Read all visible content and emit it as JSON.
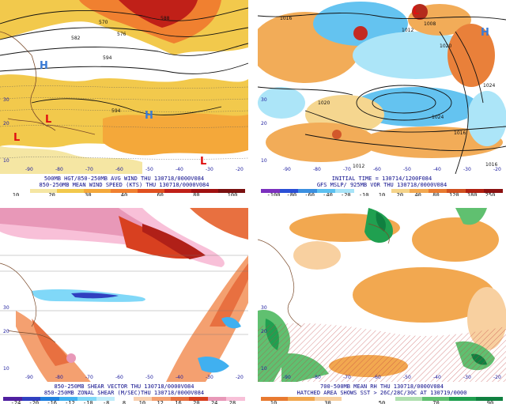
{
  "panels": [
    {
      "caption1": "500MB HGT/850-250MB AVG WIND THU 130718/0000V084",
      "caption2": "850-250MB MEAN WIND SPEED (KTS) THU 130718/0000V084",
      "ticks": [
        "10",
        "20",
        "30",
        "40",
        "60",
        "80",
        "100"
      ],
      "colors": [
        "#ffffff",
        "#f5e6a3",
        "#f2c94c",
        "#f4a83a",
        "#f08030",
        "#e05020",
        "#c02018",
        "#a01010",
        "#7a1010"
      ],
      "pressure_labels": [
        {
          "text": "H"
        },
        {
          "text": "H"
        },
        {
          "text": "L"
        },
        {
          "text": "L"
        },
        {
          "text": "L"
        }
      ],
      "contour_labels": [
        "588",
        "582",
        "576",
        "570",
        "594",
        "594"
      ],
      "lon_labels": [
        "-90",
        "-80",
        "-70",
        "-60",
        "-50",
        "-40",
        "-30",
        "-20"
      ],
      "lat_labels": [
        "30",
        "20",
        "10"
      ]
    },
    {
      "caption1": "INITIAL TIME = 130714/1200F084",
      "caption2": "GFS MSLP/ 925MB VOR THU 130718/0000V084",
      "ticks": [
        "-100",
        "-80",
        "-60",
        "-40",
        "-20",
        "-10",
        "10",
        "20",
        "40",
        "80",
        "120",
        "180",
        "250"
      ],
      "colors": [
        "#7b2fbe",
        "#2a4fd6",
        "#3a8fe0",
        "#5cc0f0",
        "#a8e4f8",
        "#ffffff",
        "#ffffff",
        "#f5d48a",
        "#f2a850",
        "#e87a30",
        "#d05020",
        "#b02010",
        "#8a1010"
      ],
      "pressure_labels": [
        {
          "text": "H"
        },
        {
          "text": "L"
        }
      ],
      "contour_labels": [
        "1016",
        "1012",
        "1008",
        "1024",
        "1020",
        "1024",
        "1016",
        "1012",
        "1020",
        "1016"
      ],
      "lon_labels": [
        "-90",
        "-80",
        "-70",
        "-60",
        "-50",
        "-40",
        "-30",
        "-20"
      ],
      "lat_labels": [
        "30",
        "20",
        "10"
      ]
    },
    {
      "caption1": "850-250MB SHEAR VECTOR THU 130718/0000V084",
      "caption2": "850-250MB ZONAL SHEAR (M/SEC)THU 130718/0000V084",
      "ticks": [
        "-24",
        "-20",
        "-16",
        "-12",
        "-10",
        "-8",
        "8",
        "10",
        "12",
        "16",
        "20",
        "24",
        "28"
      ],
      "colors": [
        "#5020a0",
        "#3040c0",
        "#2080e0",
        "#40b0f0",
        "#80d8f8",
        "#c0ecfa",
        "#ffffff",
        "#f8d0b0",
        "#f4a070",
        "#e87040",
        "#d84020",
        "#e898b8",
        "#f8c0d8"
      ],
      "lon_labels": [
        "-90",
        "-80",
        "-70",
        "-60",
        "-50",
        "-40",
        "-30",
        "-20"
      ],
      "lat_labels": [
        "30",
        "20",
        "10"
      ]
    },
    {
      "caption1": "700-500MB MEAN RH THU 130718/0000V084",
      "caption2": "HATCHED AREA SHOWS SST > 26C/28C/30C AT 130719/0000",
      "ticks": [
        "10",
        "30",
        "50",
        "70",
        "90"
      ],
      "colors": [
        "#e87a30",
        "#f2a850",
        "#f8d0a0",
        "#ffffff",
        "#ffffff",
        "#b0e0b0",
        "#60c070",
        "#20a050",
        "#108040"
      ],
      "lon_labels": [
        "-90",
        "-80",
        "-70",
        "-60",
        "-50",
        "-40",
        "-30",
        "-20"
      ],
      "lat_labels": [
        "30",
        "20",
        "10"
      ]
    }
  ]
}
